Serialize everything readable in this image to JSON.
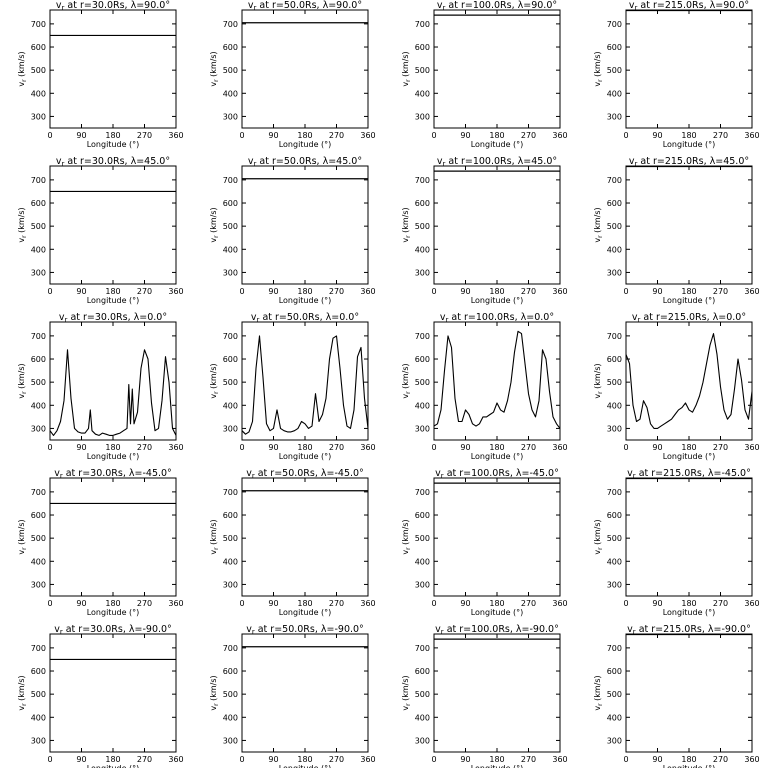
{
  "chart_data": {
    "type": "line",
    "layout": "5 rows x 4 columns",
    "ylabel": "vr (km/s)",
    "xlabel": "Longitude (°)",
    "xlim": [
      0,
      360
    ],
    "ylim": [
      250,
      760
    ],
    "xticks": [
      "0",
      "90",
      "180",
      "270",
      "360"
    ],
    "yticks": [
      "300",
      "400",
      "500",
      "600",
      "700"
    ],
    "radii": [
      "30.0",
      "50.0",
      "100.0",
      "215.0"
    ],
    "latitudes": [
      "90.0",
      "45.0",
      "0.0",
      "-45.0",
      "-90.0"
    ],
    "constant_speeds": [
      650,
      705,
      738,
      758
    ],
    "panels": [
      {
        "r": "30.0",
        "lat": "90.0",
        "title": "vr at r=30.0Rs, λ=90.0°"
      },
      {
        "r": "50.0",
        "lat": "90.0",
        "title": "vr at r=50.0Rs, λ=90.0°"
      },
      {
        "r": "100.0",
        "lat": "90.0",
        "title": "vr at r=100.0Rs, λ=90.0°"
      },
      {
        "r": "215.0",
        "lat": "90.0",
        "title": "vr at r=215.0Rs, λ=90.0°"
      },
      {
        "r": "30.0",
        "lat": "45.0",
        "title": "vr at r=30.0Rs, λ=45.0°"
      },
      {
        "r": "50.0",
        "lat": "45.0",
        "title": "vr at r=50.0Rs, λ=45.0°"
      },
      {
        "r": "100.0",
        "lat": "45.0",
        "title": "vr at r=100.0Rs, λ=45.0°"
      },
      {
        "r": "215.0",
        "lat": "45.0",
        "title": "vr at r=215.0Rs, λ=45.0°"
      },
      {
        "r": "30.0",
        "lat": "0.0",
        "title": "vr at r=30.0Rs, λ=0.0°"
      },
      {
        "r": "50.0",
        "lat": "0.0",
        "title": "vr at r=50.0Rs, λ=0.0°"
      },
      {
        "r": "100.0",
        "lat": "0.0",
        "title": "vr at r=100.0Rs, λ=0.0°"
      },
      {
        "r": "215.0",
        "lat": "0.0",
        "title": "vr at r=215.0Rs, λ=0.0°"
      },
      {
        "r": "30.0",
        "lat": "-45.0",
        "title": "vr at r=30.0Rs, λ=-45.0°"
      },
      {
        "r": "50.0",
        "lat": "-45.0",
        "title": "vr at r=50.0Rs, λ=-45.0°"
      },
      {
        "r": "100.0",
        "lat": "-45.0",
        "title": "vr at r=100.0Rs, λ=-45.0°"
      },
      {
        "r": "215.0",
        "lat": "-45.0",
        "title": "vr at r=215.0Rs, λ=-45.0°"
      },
      {
        "r": "30.0",
        "lat": "-90.0",
        "title": "vr at r=30.0Rs, λ=-90.0°"
      },
      {
        "r": "50.0",
        "lat": "-90.0",
        "title": "vr at r=50.0Rs, λ=-90.0°"
      },
      {
        "r": "100.0",
        "lat": "-90.0",
        "title": "vr at r=100.0Rs, λ=-90.0°"
      },
      {
        "r": "215.0",
        "lat": "-90.0",
        "title": "vr at r=215.0Rs, λ=-90.0°"
      }
    ],
    "equatorial_series": [
      {
        "r": "30.0",
        "x": [
          0,
          10,
          20,
          30,
          40,
          50,
          60,
          70,
          80,
          90,
          100,
          110,
          115,
          120,
          130,
          140,
          150,
          160,
          170,
          180,
          190,
          200,
          210,
          220,
          225,
          230,
          235,
          240,
          250,
          260,
          270,
          280,
          290,
          300,
          310,
          320,
          330,
          340,
          350,
          360
        ],
        "y": [
          290,
          270,
          290,
          330,
          420,
          640,
          430,
          300,
          285,
          280,
          280,
          300,
          380,
          290,
          275,
          270,
          280,
          275,
          270,
          270,
          275,
          280,
          290,
          300,
          490,
          320,
          470,
          320,
          370,
          560,
          640,
          600,
          410,
          290,
          300,
          420,
          610,
          500,
          300,
          270
        ]
      },
      {
        "r": "50.0",
        "x": [
          0,
          10,
          20,
          30,
          40,
          50,
          60,
          70,
          80,
          90,
          100,
          110,
          120,
          130,
          140,
          150,
          160,
          170,
          180,
          190,
          200,
          210,
          220,
          230,
          240,
          250,
          260,
          270,
          280,
          290,
          300,
          310,
          320,
          330,
          340,
          350,
          360
        ],
        "y": [
          290,
          275,
          285,
          330,
          560,
          700,
          520,
          320,
          290,
          300,
          380,
          300,
          290,
          285,
          285,
          290,
          300,
          330,
          320,
          300,
          310,
          450,
          330,
          360,
          430,
          600,
          690,
          700,
          560,
          400,
          310,
          300,
          380,
          610,
          650,
          430,
          300
        ]
      },
      {
        "r": "100.0",
        "x": [
          0,
          10,
          20,
          30,
          40,
          50,
          60,
          70,
          80,
          90,
          100,
          110,
          120,
          130,
          140,
          150,
          160,
          170,
          180,
          190,
          200,
          210,
          220,
          230,
          240,
          250,
          260,
          270,
          280,
          290,
          300,
          310,
          320,
          330,
          340,
          350,
          360
        ],
        "y": [
          310,
          320,
          380,
          550,
          700,
          650,
          430,
          330,
          330,
          380,
          360,
          320,
          310,
          320,
          350,
          350,
          360,
          370,
          410,
          380,
          370,
          420,
          500,
          630,
          720,
          710,
          580,
          450,
          380,
          350,
          420,
          640,
          600,
          460,
          350,
          320,
          300
        ]
      },
      {
        "r": "215.0",
        "x": [
          0,
          10,
          20,
          30,
          40,
          50,
          60,
          70,
          80,
          90,
          100,
          110,
          120,
          130,
          140,
          150,
          160,
          170,
          180,
          190,
          200,
          210,
          220,
          230,
          240,
          250,
          260,
          270,
          280,
          290,
          300,
          310,
          320,
          330,
          340,
          350,
          360
        ],
        "y": [
          620,
          580,
          400,
          330,
          340,
          420,
          390,
          320,
          300,
          300,
          310,
          320,
          330,
          340,
          360,
          380,
          390,
          410,
          380,
          370,
          400,
          440,
          500,
          580,
          660,
          710,
          620,
          480,
          380,
          340,
          360,
          470,
          600,
          510,
          380,
          340,
          460
        ]
      }
    ]
  }
}
